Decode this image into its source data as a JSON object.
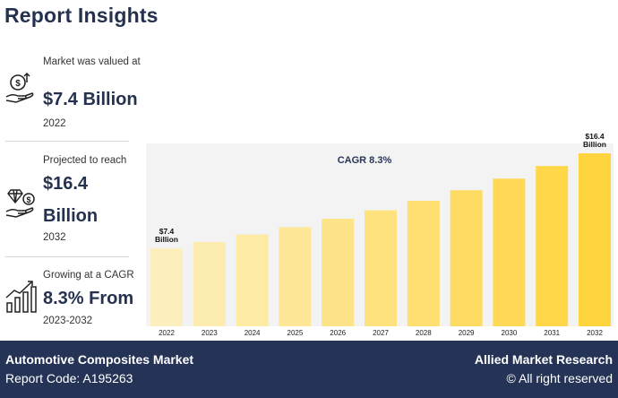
{
  "title": "Report Insights",
  "stats": [
    {
      "label": "Market was valued at",
      "value": "$7.4 Billion",
      "year": "2022"
    },
    {
      "label": "Projected to reach",
      "value_line1": "$16.4",
      "value_line2": "Billion",
      "year": "2032"
    },
    {
      "label": "Growing at a CAGR",
      "value": "8.3% From",
      "year": "2023-2032"
    }
  ],
  "chart_data": {
    "type": "bar",
    "title": "CAGR 8.3%",
    "categories": [
      "2022",
      "2023",
      "2024",
      "2025",
      "2026",
      "2027",
      "2028",
      "2029",
      "2030",
      "2031",
      "2032"
    ],
    "values": [
      7.4,
      8.0,
      8.7,
      9.4,
      10.2,
      11.0,
      11.9,
      12.9,
      14.0,
      15.2,
      16.4
    ],
    "ylim": [
      0,
      17
    ],
    "annotations": [
      {
        "index": 0,
        "line1": "$7.4",
        "line2": "Billion"
      },
      {
        "index": 10,
        "line1": "$16.4",
        "line2": "Billion"
      }
    ],
    "colors": {
      "start": "#fdefbd",
      "end": "#ffd43c"
    }
  },
  "footer": {
    "market": "Automotive Composites Market",
    "report_code": "Report Code: A195263",
    "brand": "Allied Market Research",
    "rights": "© All right reserved"
  }
}
